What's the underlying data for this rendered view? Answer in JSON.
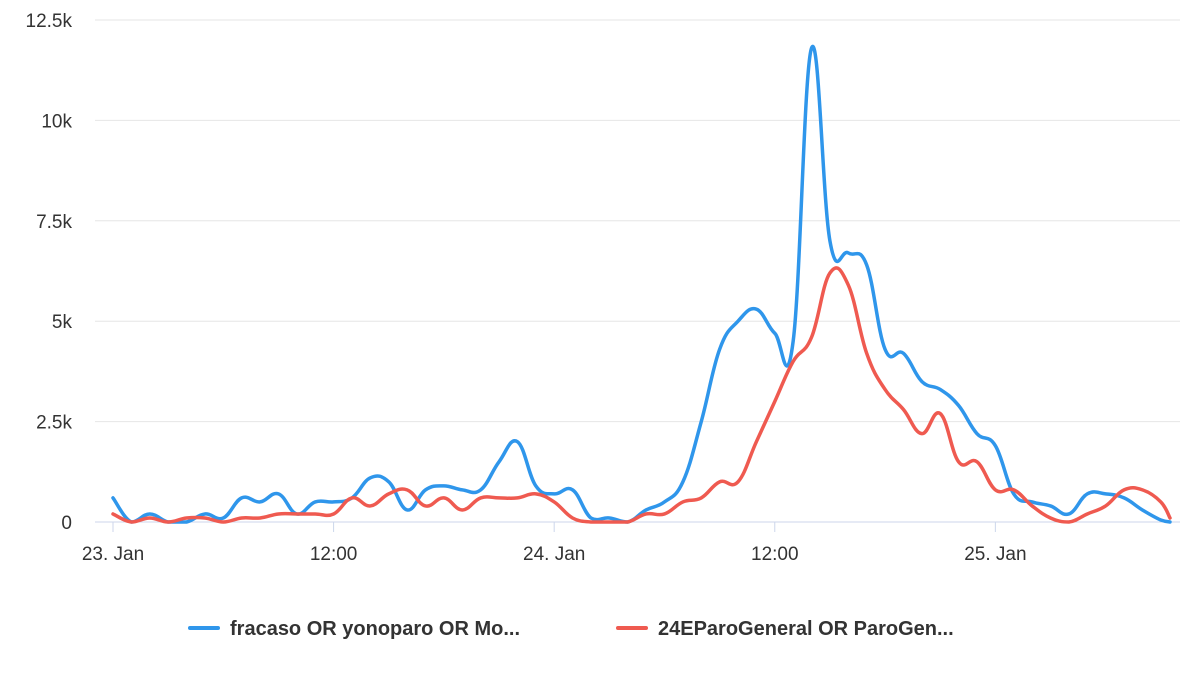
{
  "chart_data": {
    "type": "line",
    "title": "",
    "xlabel": "",
    "ylabel": "",
    "x_ticks": [
      "23. Jan",
      "12:00",
      "24. Jan",
      "12:00",
      "25. Jan"
    ],
    "y_ticks": [
      "0",
      "2.5k",
      "5k",
      "7.5k",
      "10k",
      "12.5k"
    ],
    "ylim": [
      0,
      12500
    ],
    "xlim": [
      0,
      57.5
    ],
    "grid": "horizontal",
    "legend_position": "bottom-center",
    "series": [
      {
        "name": "fracaso OR yonoparo OR Mo...",
        "color": "#2f96eb",
        "x": [
          0,
          1,
          2,
          3,
          4,
          5,
          6,
          7,
          8,
          9,
          10,
          11,
          12,
          13,
          14,
          15,
          16,
          17,
          18,
          19,
          20,
          21,
          22,
          23,
          24,
          25,
          26,
          27,
          28,
          29,
          30,
          31,
          32,
          33,
          34,
          35,
          36,
          37,
          38,
          39,
          40,
          41,
          42,
          43,
          44,
          45,
          46,
          47,
          48,
          49,
          50,
          51,
          52,
          53,
          54,
          55,
          56,
          57,
          57.5
        ],
        "values": [
          600,
          0,
          200,
          0,
          0,
          200,
          100,
          600,
          500,
          700,
          200,
          500,
          500,
          600,
          1100,
          1000,
          300,
          800,
          900,
          800,
          800,
          1500,
          2000,
          900,
          700,
          800,
          100,
          100,
          0,
          300,
          500,
          1000,
          2500,
          4300,
          5000,
          5300,
          4700,
          4500,
          11800,
          7000,
          6700,
          6400,
          4300,
          4200,
          3500,
          3300,
          2900,
          2200,
          1900,
          700,
          500,
          400,
          200,
          700,
          700,
          600,
          300,
          50,
          0
        ]
      },
      {
        "name": "24EParoGeneral OR ParoGen...",
        "color": "#ef5a50",
        "x": [
          0,
          1,
          2,
          3,
          4,
          5,
          6,
          7,
          8,
          9,
          10,
          11,
          12,
          13,
          14,
          15,
          16,
          17,
          18,
          19,
          20,
          21,
          22,
          23,
          24,
          25,
          26,
          27,
          28,
          29,
          30,
          31,
          32,
          33,
          34,
          35,
          36,
          37,
          38,
          39,
          40,
          41,
          42,
          43,
          44,
          45,
          46,
          47,
          48,
          49,
          50,
          51,
          52,
          53,
          54,
          55,
          56,
          57,
          57.5
        ],
        "values": [
          200,
          0,
          100,
          0,
          100,
          100,
          0,
          100,
          100,
          200,
          200,
          200,
          200,
          600,
          400,
          700,
          800,
          400,
          600,
          300,
          600,
          600,
          600,
          700,
          500,
          100,
          0,
          0,
          0,
          200,
          200,
          500,
          600,
          1000,
          1000,
          2000,
          3000,
          4000,
          4600,
          6200,
          5900,
          4200,
          3300,
          2800,
          2200,
          2700,
          1500,
          1500,
          800,
          800,
          400,
          100,
          0,
          200,
          400,
          800,
          800,
          500,
          100
        ]
      }
    ]
  }
}
